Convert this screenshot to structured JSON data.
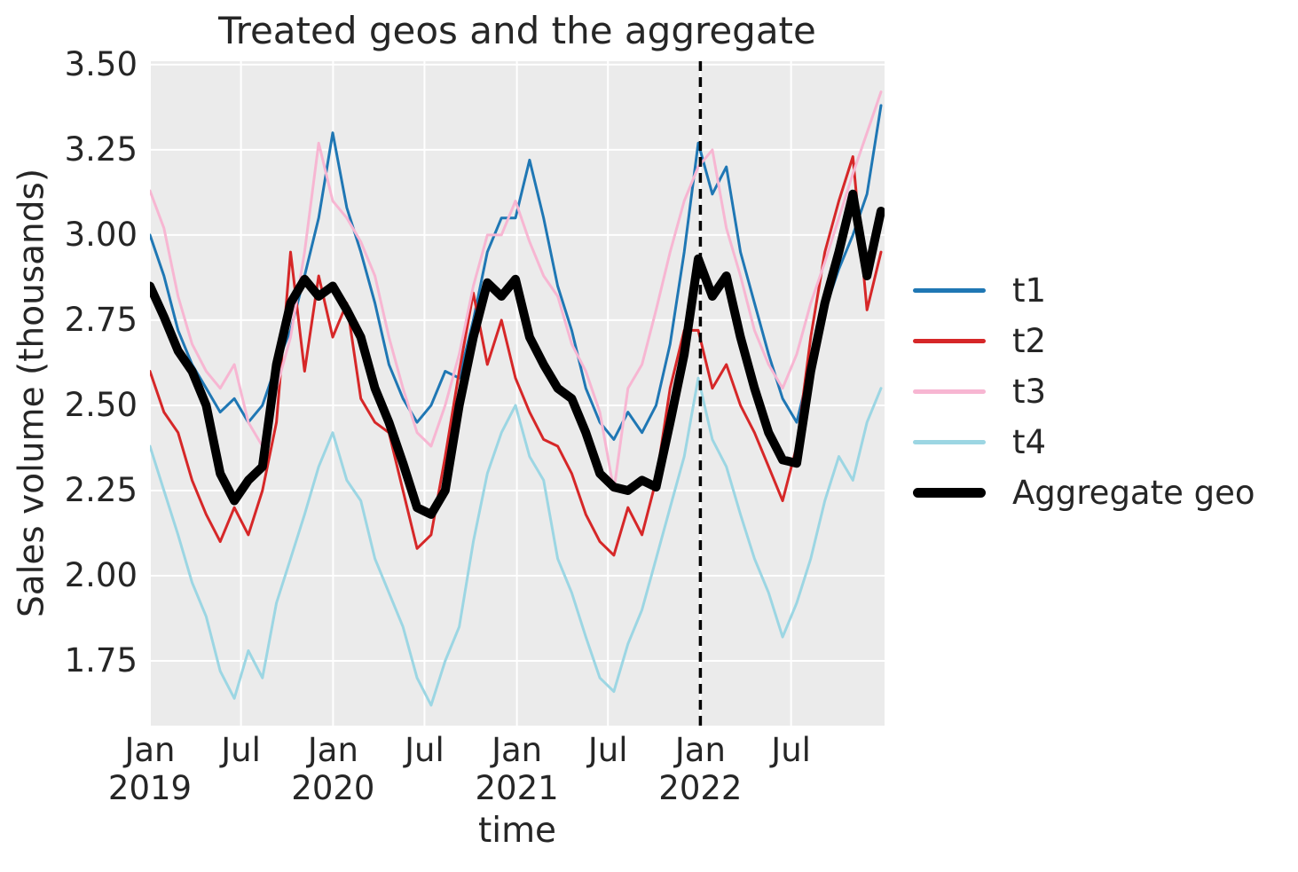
{
  "chart_data": {
    "type": "line",
    "title": "Treated geos and the aggregate",
    "xlabel": "time",
    "ylabel": "Sales volume (thousands)",
    "x_unit": "weeks since 2019-01-01",
    "x_domain": [
      0,
      209
    ],
    "ylim": [
      1.56,
      3.51
    ],
    "grid": true,
    "plot_bg_color": "#ebebeb",
    "grid_color": "#ffffff",
    "text_color": "#262626",
    "legend_position": "right",
    "yticks": [
      {
        "value": 1.75,
        "label": "1.75"
      },
      {
        "value": 2.0,
        "label": "2.00"
      },
      {
        "value": 2.25,
        "label": "2.25"
      },
      {
        "value": 2.5,
        "label": "2.50"
      },
      {
        "value": 2.75,
        "label": "2.75"
      },
      {
        "value": 3.0,
        "label": "3.00"
      },
      {
        "value": 3.25,
        "label": "3.25"
      },
      {
        "value": 3.5,
        "label": "3.50"
      }
    ],
    "xticks": [
      {
        "week": 0,
        "line1": "Jan",
        "line2": "2019"
      },
      {
        "week": 25.9,
        "line1": "Jul",
        "line2": ""
      },
      {
        "week": 52.1,
        "line1": "Jan",
        "line2": "2020"
      },
      {
        "week": 78.1,
        "line1": "Jul",
        "line2": ""
      },
      {
        "week": 104.4,
        "line1": "Jan",
        "line2": "2021"
      },
      {
        "week": 130.3,
        "line1": "Jul",
        "line2": ""
      },
      {
        "week": 156.6,
        "line1": "Jan",
        "line2": "2022"
      },
      {
        "week": 182.4,
        "line1": "Jul",
        "line2": ""
      }
    ],
    "treatment_line": {
      "x_week": 156.6,
      "style": "dashed",
      "color": "#000000"
    },
    "x_weeks": [
      0,
      4,
      8,
      12,
      16,
      20,
      24,
      28,
      32,
      36,
      40,
      44,
      48,
      52,
      56,
      60,
      64,
      68,
      72,
      76,
      80,
      84,
      88,
      92,
      96,
      100,
      104,
      108,
      112,
      116,
      120,
      124,
      128,
      132,
      136,
      140,
      144,
      148,
      152,
      156,
      160,
      164,
      168,
      172,
      176,
      180,
      184,
      188,
      192,
      196,
      200,
      204,
      208
    ],
    "series": [
      {
        "name": "t1",
        "color": "#1f77b4",
        "line_width": 3,
        "values": [
          3.0,
          2.88,
          2.72,
          2.62,
          2.55,
          2.48,
          2.52,
          2.45,
          2.5,
          2.62,
          2.72,
          2.88,
          3.05,
          3.3,
          3.08,
          2.95,
          2.8,
          2.62,
          2.52,
          2.45,
          2.5,
          2.6,
          2.58,
          2.75,
          2.95,
          3.05,
          3.05,
          3.22,
          3.05,
          2.85,
          2.72,
          2.55,
          2.45,
          2.4,
          2.48,
          2.42,
          2.5,
          2.68,
          2.95,
          3.27,
          3.12,
          3.2,
          2.95,
          2.8,
          2.65,
          2.52,
          2.45,
          2.62,
          2.78,
          2.9,
          3.0,
          3.12,
          3.38
        ]
      },
      {
        "name": "t2",
        "color": "#d62728",
        "line_width": 3,
        "values": [
          2.6,
          2.48,
          2.42,
          2.28,
          2.18,
          2.1,
          2.2,
          2.12,
          2.25,
          2.45,
          2.95,
          2.6,
          2.88,
          2.7,
          2.8,
          2.52,
          2.45,
          2.42,
          2.25,
          2.08,
          2.12,
          2.35,
          2.6,
          2.83,
          2.62,
          2.75,
          2.58,
          2.48,
          2.4,
          2.38,
          2.3,
          2.18,
          2.1,
          2.06,
          2.2,
          2.12,
          2.28,
          2.55,
          2.72,
          2.72,
          2.55,
          2.62,
          2.5,
          2.42,
          2.32,
          2.22,
          2.38,
          2.7,
          2.95,
          3.1,
          3.23,
          2.78,
          2.95
        ]
      },
      {
        "name": "t3",
        "color": "#f7b6d2",
        "line_width": 3,
        "values": [
          3.13,
          3.02,
          2.82,
          2.68,
          2.6,
          2.55,
          2.62,
          2.45,
          2.38,
          2.55,
          2.7,
          2.95,
          3.27,
          3.1,
          3.05,
          2.98,
          2.88,
          2.7,
          2.55,
          2.42,
          2.38,
          2.5,
          2.65,
          2.85,
          3.0,
          3.0,
          3.1,
          2.98,
          2.88,
          2.82,
          2.68,
          2.6,
          2.48,
          2.25,
          2.55,
          2.62,
          2.78,
          2.95,
          3.1,
          3.2,
          3.25,
          3.02,
          2.88,
          2.72,
          2.62,
          2.55,
          2.65,
          2.8,
          2.92,
          3.05,
          3.18,
          3.3,
          3.42
        ]
      },
      {
        "name": "t4",
        "color": "#9cd6e3",
        "line_width": 3,
        "values": [
          2.38,
          2.25,
          2.12,
          1.98,
          1.88,
          1.72,
          1.64,
          1.78,
          1.7,
          1.92,
          2.05,
          2.18,
          2.32,
          2.42,
          2.28,
          2.22,
          2.05,
          1.95,
          1.85,
          1.7,
          1.62,
          1.75,
          1.85,
          2.1,
          2.3,
          2.42,
          2.5,
          2.35,
          2.28,
          2.05,
          1.95,
          1.82,
          1.7,
          1.66,
          1.8,
          1.9,
          2.05,
          2.2,
          2.35,
          2.58,
          2.4,
          2.32,
          2.18,
          2.05,
          1.95,
          1.82,
          1.92,
          2.05,
          2.22,
          2.35,
          2.28,
          2.45,
          2.55
        ]
      },
      {
        "name": "Aggregate geo",
        "color": "#000000",
        "line_width": 10,
        "values": [
          2.85,
          2.76,
          2.66,
          2.6,
          2.5,
          2.3,
          2.22,
          2.28,
          2.32,
          2.62,
          2.8,
          2.87,
          2.82,
          2.85,
          2.78,
          2.7,
          2.55,
          2.45,
          2.33,
          2.2,
          2.18,
          2.25,
          2.5,
          2.7,
          2.86,
          2.82,
          2.87,
          2.7,
          2.62,
          2.55,
          2.52,
          2.42,
          2.3,
          2.26,
          2.25,
          2.28,
          2.26,
          2.45,
          2.65,
          2.93,
          2.82,
          2.88,
          2.7,
          2.55,
          2.42,
          2.34,
          2.33,
          2.6,
          2.8,
          2.95,
          3.12,
          2.88,
          3.07
        ]
      }
    ]
  }
}
